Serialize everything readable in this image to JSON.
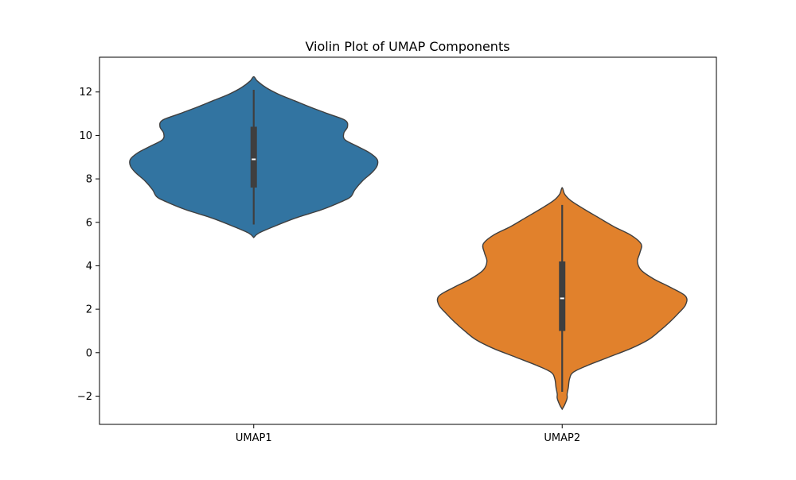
{
  "chart_data": {
    "type": "violin",
    "title": "Violin Plot of UMAP Components",
    "xlabel": "",
    "ylabel": "",
    "ylim": [
      -3.3,
      13.6
    ],
    "yticks": [
      -2,
      0,
      2,
      4,
      6,
      8,
      10,
      12
    ],
    "ytick_labels": [
      "−2",
      "0",
      "2",
      "4",
      "6",
      "8",
      "10",
      "12"
    ],
    "categories": [
      "UMAP1",
      "UMAP2"
    ],
    "grid": false,
    "legend": "none",
    "series": [
      {
        "category": "UMAP1",
        "color": "#3274a1",
        "range": [
          5.3,
          12.7
        ],
        "whisker": [
          5.9,
          12.1
        ],
        "quartiles": [
          7.6,
          10.4
        ],
        "median": 8.9,
        "density": [
          [
            5.3,
            0.0
          ],
          [
            5.5,
            0.04
          ],
          [
            5.8,
            0.16
          ],
          [
            6.2,
            0.34
          ],
          [
            6.6,
            0.56
          ],
          [
            7.0,
            0.73
          ],
          [
            7.2,
            0.79
          ],
          [
            7.5,
            0.82
          ],
          [
            7.9,
            0.88
          ],
          [
            8.3,
            0.96
          ],
          [
            8.6,
            1.0
          ],
          [
            8.9,
            1.0
          ],
          [
            9.2,
            0.94
          ],
          [
            9.5,
            0.84
          ],
          [
            9.8,
            0.74
          ],
          [
            10.1,
            0.73
          ],
          [
            10.4,
            0.76
          ],
          [
            10.7,
            0.74
          ],
          [
            11.0,
            0.6
          ],
          [
            11.3,
            0.46
          ],
          [
            11.6,
            0.33
          ],
          [
            11.9,
            0.2
          ],
          [
            12.2,
            0.1
          ],
          [
            12.5,
            0.03
          ],
          [
            12.7,
            0.0
          ]
        ]
      },
      {
        "category": "UMAP2",
        "color": "#e1812c",
        "range": [
          -2.6,
          7.6
        ],
        "whisker": [
          -1.8,
          6.8
        ],
        "quartiles": [
          1.0,
          4.2
        ],
        "median": 2.5,
        "density": [
          [
            -2.6,
            0.0
          ],
          [
            -2.4,
            0.02
          ],
          [
            -2.1,
            0.04
          ],
          [
            -1.9,
            0.04
          ],
          [
            -1.6,
            0.05
          ],
          [
            -1.2,
            0.06
          ],
          [
            -0.9,
            0.09
          ],
          [
            -0.6,
            0.2
          ],
          [
            -0.2,
            0.38
          ],
          [
            0.2,
            0.56
          ],
          [
            0.6,
            0.7
          ],
          [
            1.0,
            0.79
          ],
          [
            1.4,
            0.87
          ],
          [
            1.8,
            0.94
          ],
          [
            2.2,
            1.0
          ],
          [
            2.6,
            1.0
          ],
          [
            3.0,
            0.88
          ],
          [
            3.4,
            0.74
          ],
          [
            3.8,
            0.64
          ],
          [
            4.2,
            0.61
          ],
          [
            4.6,
            0.63
          ],
          [
            5.0,
            0.64
          ],
          [
            5.4,
            0.56
          ],
          [
            5.8,
            0.42
          ],
          [
            6.2,
            0.3
          ],
          [
            6.6,
            0.18
          ],
          [
            7.0,
            0.07
          ],
          [
            7.3,
            0.02
          ],
          [
            7.6,
            0.0
          ]
        ]
      }
    ]
  }
}
